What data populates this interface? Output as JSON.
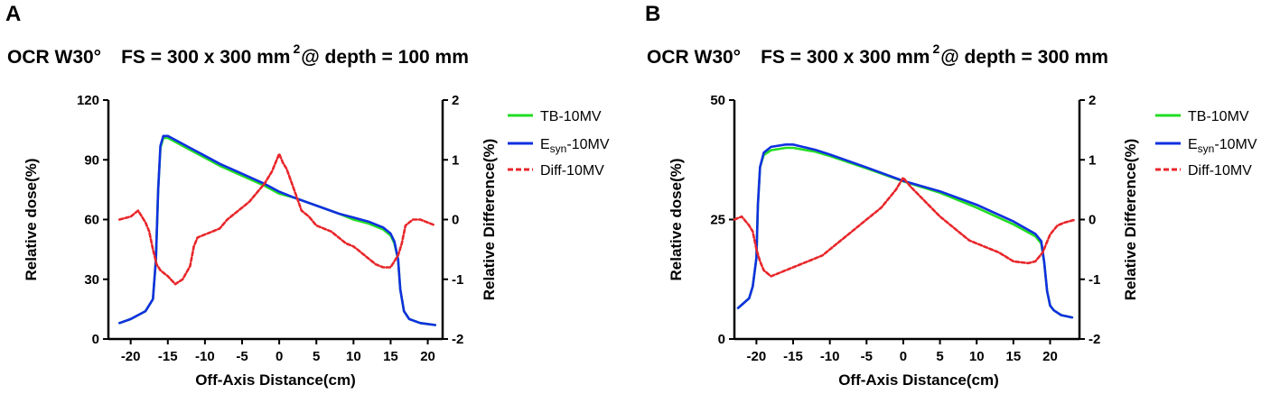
{
  "panels": [
    {
      "letter": "A",
      "title_prefix": "OCR W30°",
      "title_fs": "FS = 300 x 300 mm",
      "title_sup": "2",
      "title_suffix": "@ depth = 100 mm",
      "legend": {
        "tb": "TB-10MV",
        "esyn_base": "E",
        "esyn_sub": "syn",
        "esyn_rest": "-10MV",
        "diff": "Diff-10MV"
      }
    },
    {
      "letter": "B",
      "title_prefix": "OCR W30°",
      "title_fs": "FS = 300 x 300 mm",
      "title_sup": "2",
      "title_suffix": "@ depth = 300 mm",
      "legend": {
        "tb": "TB-10MV",
        "esyn_base": "E",
        "esyn_sub": "syn",
        "esyn_rest": "-10MV",
        "diff": "Diff-10MV"
      }
    }
  ],
  "colors": {
    "tb": "#22dd22",
    "esyn": "#1030e0",
    "diff": "#e8262a",
    "axis": "#000000"
  },
  "chart_data": [
    {
      "type": "line",
      "title": "OCR W30° FS = 300 x 300 mm2 @ depth = 100 mm",
      "xlabel": "Off-Axis Distance(cm)",
      "ylabel": "Relative dose(%)",
      "y2label": "Relative Difference(%)",
      "xlim": [
        -23,
        22
      ],
      "ylim": [
        0,
        120
      ],
      "y2lim": [
        -2,
        2
      ],
      "xticks": [
        -20,
        -15,
        -10,
        -5,
        0,
        5,
        10,
        15,
        20
      ],
      "yticks": [
        0,
        30,
        60,
        90,
        120
      ],
      "y2ticks": [
        -2,
        -1,
        0,
        1,
        2
      ],
      "grid": false,
      "legend_position": "top-right",
      "series": [
        {
          "name": "TB-10MV",
          "axis": "left",
          "style": "solid",
          "x": [
            -21.5,
            -20,
            -18,
            -17,
            -16.6,
            -16.3,
            -16,
            -15.6,
            -15,
            -14,
            -12,
            -10,
            -8,
            -5,
            -2,
            0,
            2,
            5,
            8,
            10,
            12,
            14,
            15,
            15.5,
            16,
            16.3,
            16.8,
            17.5,
            19,
            21
          ],
          "y": [
            8,
            10,
            14,
            20,
            40,
            75,
            96,
            101,
            101,
            99,
            95,
            91,
            87,
            82,
            77,
            73,
            71,
            67,
            63,
            60,
            58,
            55,
            52,
            48,
            40,
            25,
            14,
            10,
            8,
            7
          ]
        },
        {
          "name": "Esyn-10MV",
          "axis": "left",
          "style": "solid",
          "x": [
            -21.5,
            -20,
            -18,
            -17,
            -16.6,
            -16.3,
            -16,
            -15.6,
            -15,
            -14,
            -12,
            -10,
            -8,
            -5,
            -2,
            0,
            2,
            5,
            8,
            10,
            12,
            14,
            15,
            15.5,
            16,
            16.3,
            16.8,
            17.5,
            19,
            21
          ],
          "y": [
            8,
            10,
            14,
            20,
            40,
            75,
            97,
            102,
            102,
            100,
            96,
            92,
            88,
            83,
            78,
            74,
            71,
            67,
            63,
            61,
            59,
            56,
            53,
            49,
            40,
            25,
            14,
            10,
            8,
            7
          ]
        },
        {
          "name": "Diff-10MV",
          "axis": "right",
          "style": "dashed",
          "x": [
            -21.5,
            -20,
            -19,
            -18.5,
            -18,
            -17.5,
            -17,
            -16.5,
            -16,
            -15,
            -14,
            -13,
            -12,
            -11.5,
            -11,
            -10,
            -9,
            -8,
            -7,
            -6,
            -5,
            -4,
            -3,
            -2,
            -1,
            -0.5,
            0,
            0.5,
            1,
            2,
            3,
            4,
            5,
            6,
            7,
            8,
            9,
            10,
            11,
            12,
            13,
            14,
            15,
            16,
            16.5,
            17,
            18,
            19,
            20,
            21
          ],
          "y": [
            0,
            0.05,
            0.15,
            0.05,
            -0.05,
            -0.2,
            -0.5,
            -0.75,
            -0.85,
            -0.95,
            -1.08,
            -1.0,
            -0.78,
            -0.45,
            -0.3,
            -0.25,
            -0.2,
            -0.15,
            0.0,
            0.1,
            0.2,
            0.3,
            0.45,
            0.6,
            0.8,
            0.95,
            1.1,
            0.95,
            0.85,
            0.5,
            0.15,
            0.05,
            -0.1,
            -0.15,
            -0.2,
            -0.3,
            -0.4,
            -0.45,
            -0.55,
            -0.65,
            -0.75,
            -0.8,
            -0.8,
            -0.6,
            -0.4,
            -0.1,
            0.0,
            0.0,
            -0.05,
            -0.1
          ]
        }
      ]
    },
    {
      "type": "line",
      "title": "OCR W30° FS = 300 x 300 mm2 @ depth = 300 mm",
      "xlabel": "Off-Axis Distance(cm)",
      "ylabel": "Relative dose(%)",
      "y2label": "Relative Difference(%)",
      "xlim": [
        -23,
        24
      ],
      "ylim": [
        0,
        50
      ],
      "y2lim": [
        -2,
        2
      ],
      "xticks": [
        -20,
        -15,
        -10,
        -5,
        0,
        5,
        10,
        15,
        20
      ],
      "yticks": [
        0,
        25,
        50
      ],
      "y2ticks": [
        -2,
        -1,
        0,
        1,
        2
      ],
      "grid": false,
      "legend_position": "top-right",
      "series": [
        {
          "name": "TB-10MV",
          "axis": "left",
          "style": "solid",
          "x": [
            -22.5,
            -21,
            -20.5,
            -20,
            -19.8,
            -19.5,
            -19,
            -18,
            -16,
            -15,
            -12,
            -10,
            -5,
            0,
            5,
            10,
            15,
            18,
            18.8,
            19.2,
            19.6,
            20,
            20.5,
            21.5,
            23
          ],
          "y": [
            6.5,
            8.5,
            11,
            17,
            28,
            36,
            38.5,
            39.5,
            40,
            40,
            39.2,
            38.3,
            35.7,
            33,
            30.6,
            27.5,
            24,
            21.5,
            20,
            16,
            10,
            7,
            6,
            5,
            4.5
          ]
        },
        {
          "name": "Esyn-10MV",
          "axis": "left",
          "style": "solid",
          "x": [
            -22.5,
            -21,
            -20.5,
            -20,
            -19.8,
            -19.5,
            -19,
            -18,
            -16,
            -15,
            -12,
            -10,
            -5,
            0,
            5,
            10,
            15,
            18,
            18.8,
            19.2,
            19.6,
            20,
            20.5,
            21.5,
            23
          ],
          "y": [
            6.5,
            8.5,
            11,
            17,
            28,
            36,
            39,
            40.2,
            40.7,
            40.7,
            39.6,
            38.6,
            35.9,
            33.1,
            30.9,
            28.1,
            24.6,
            22,
            20.5,
            16,
            10,
            7,
            6,
            5,
            4.5
          ]
        },
        {
          "name": "Diff-10MV",
          "axis": "right",
          "style": "dashed",
          "x": [
            -23,
            -22,
            -21,
            -20.5,
            -20,
            -19.5,
            -19,
            -18,
            -17,
            -15,
            -13,
            -11,
            -9,
            -8,
            -7,
            -5,
            -3,
            -1,
            0,
            1,
            3,
            5,
            7,
            9,
            11,
            13,
            15,
            17,
            18,
            19,
            19.5,
            20,
            21,
            22,
            23.5
          ],
          "y": [
            0,
            0.05,
            -0.1,
            -0.2,
            -0.5,
            -0.7,
            -0.85,
            -0.95,
            -0.9,
            -0.8,
            -0.7,
            -0.6,
            -0.4,
            -0.3,
            -0.2,
            0,
            0.2,
            0.5,
            0.7,
            0.55,
            0.3,
            0.05,
            -0.15,
            -0.35,
            -0.45,
            -0.55,
            -0.7,
            -0.73,
            -0.7,
            -0.55,
            -0.4,
            -0.25,
            -0.1,
            -0.05,
            0
          ]
        }
      ]
    }
  ]
}
